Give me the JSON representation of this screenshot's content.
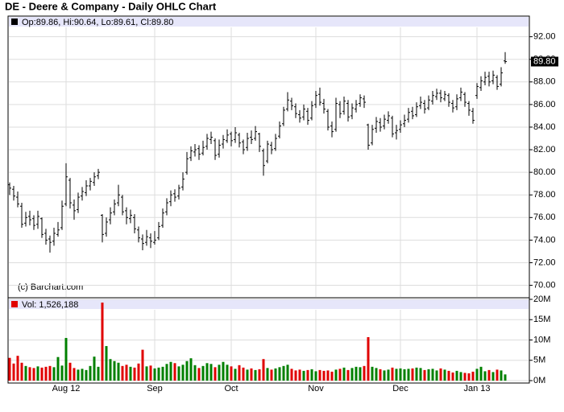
{
  "chart_data": {
    "type": "ohlc",
    "title": "DE - Deere & Company - Daily OHLC Chart",
    "legend_text": "Op:89.86, Hi:90.64, Lo:89.61, Cl:89.80",
    "copyright": "(c) Barchart.com",
    "last_price_label": "89.80",
    "grid": true,
    "bar_color": "#000000",
    "up_color": "#008000",
    "down_color": "#e00000",
    "categories": [
      null,
      null,
      null,
      null,
      null,
      null,
      null,
      null,
      null,
      null,
      null,
      null,
      null,
      null,
      "Aug 12",
      null,
      null,
      null,
      null,
      null,
      null,
      null,
      null,
      null,
      null,
      null,
      null,
      null,
      null,
      null,
      null,
      null,
      null,
      null,
      null,
      null,
      "Sep",
      null,
      null,
      null,
      null,
      null,
      null,
      null,
      null,
      null,
      null,
      null,
      null,
      null,
      null,
      null,
      null,
      null,
      null,
      "Oct",
      null,
      null,
      null,
      null,
      null,
      null,
      null,
      null,
      null,
      null,
      null,
      null,
      null,
      null,
      null,
      null,
      null,
      null,
      null,
      null,
      "Nov",
      null,
      null,
      null,
      null,
      null,
      null,
      null,
      null,
      null,
      null,
      null,
      null,
      null,
      null,
      null,
      null,
      null,
      null,
      null,
      null,
      "Dec",
      null,
      null,
      null,
      null,
      null,
      null,
      null,
      null,
      null,
      null,
      null,
      null,
      null,
      null,
      null,
      null,
      null,
      null,
      "Jan 13",
      null,
      null,
      null,
      null,
      null,
      null,
      null
    ],
    "open": [
      78.9,
      78.5,
      77.8,
      77.0,
      75.5,
      76.1,
      75.9,
      75.4,
      75.9,
      74.6,
      74.1,
      73.9,
      74.5,
      75.1,
      77.2,
      79.3,
      77.1,
      76.7,
      77.9,
      78.2,
      78.8,
      79.1,
      79.7,
      76.2,
      74.6,
      75.8,
      76.5,
      77.3,
      77.8,
      76.6,
      75.9,
      76.0,
      74.9,
      74.1,
      73.8,
      74.2,
      73.8,
      74.2,
      75.3,
      76.5,
      77.4,
      78.1,
      77.9,
      78.7,
      80.0,
      81.3,
      81.8,
      82.1,
      81.7,
      82.3,
      82.9,
      82.8,
      81.6,
      82.5,
      82.8,
      83.4,
      82.9,
      83.3,
      82.7,
      82.2,
      83.1,
      83.0,
      83.4,
      81.9,
      81.0,
      82.4,
      82.1,
      83.2,
      84.3,
      85.6,
      86.3,
      85.8,
      85.1,
      84.9,
      85.4,
      84.8,
      86.0,
      86.9,
      86.1,
      85.4,
      84.1,
      83.8,
      86.0,
      85.4,
      86.1,
      85.0,
      85.6,
      86.1,
      86.5,
      84.2,
      82.6,
      83.9,
      84.4,
      84.1,
      84.6,
      84.8,
      83.5,
      83.8,
      84.3,
      84.7,
      85.4,
      85.1,
      85.9,
      86.1,
      85.7,
      86.3,
      86.7,
      87.0,
      86.5,
      86.8,
      86.1,
      85.8,
      86.6,
      86.9,
      86.1,
      85.4,
      86.8,
      87.5,
      88.0,
      88.5,
      88.1,
      88.4,
      87.8,
      89.86
    ],
    "high": [
      79.1,
      78.8,
      78.3,
      77.3,
      76.5,
      76.6,
      76.2,
      76.6,
      76.0,
      75.0,
      74.4,
      75.1,
      75.6,
      77.5,
      80.8,
      79.5,
      77.6,
      78.2,
      78.7,
      79.3,
      79.5,
      80.0,
      80.3,
      76.3,
      76.0,
      76.9,
      77.6,
      78.9,
      78.0,
      76.9,
      76.7,
      76.3,
      75.2,
      74.5,
      74.9,
      74.6,
      74.8,
      75.6,
      76.8,
      77.7,
      78.4,
      78.5,
      78.9,
      80.0,
      81.8,
      82.3,
      82.5,
      82.4,
      82.8,
      83.4,
      83.6,
      83.0,
      82.9,
      83.3,
      83.8,
      83.6,
      84.0,
      83.5,
      82.9,
      83.5,
      83.7,
      84.1,
      83.5,
      82.1,
      82.8,
      82.7,
      83.4,
      84.5,
      85.8,
      87.1,
      86.6,
      86.1,
      85.5,
      86.0,
      85.7,
      86.3,
      87.2,
      87.5,
      86.5,
      85.6,
      84.5,
      86.6,
      86.3,
      86.7,
      86.4,
      86.1,
      86.4,
      86.9,
      86.8,
      84.3,
      84.2,
      84.9,
      84.8,
      85.1,
      85.4,
      85.0,
      84.2,
      84.6,
      85.1,
      85.7,
      85.8,
      86.2,
      86.7,
      86.4,
      86.8,
      87.2,
      87.4,
      87.3,
      87.2,
      87.0,
      86.4,
      86.9,
      87.5,
      87.1,
      86.3,
      85.7,
      87.9,
      88.5,
      88.9,
      88.9,
      89.0,
      88.6,
      89.3,
      90.64
    ],
    "low": [
      78.0,
      77.5,
      76.9,
      75.1,
      75.2,
      75.3,
      74.9,
      75.0,
      74.2,
      73.6,
      72.9,
      73.5,
      74.3,
      74.9,
      77.0,
      76.8,
      75.8,
      76.4,
      77.5,
      77.9,
      78.4,
      78.8,
      79.4,
      73.8,
      74.3,
      75.4,
      76.2,
      77.0,
      76.2,
      75.4,
      75.5,
      74.6,
      73.8,
      73.1,
      73.5,
      73.3,
      73.6,
      74.0,
      75.1,
      76.2,
      77.0,
      77.4,
      77.6,
      78.4,
      79.8,
      81.0,
      81.4,
      81.1,
      81.5,
      82.0,
      82.5,
      81.1,
      81.3,
      82.1,
      82.6,
      82.3,
      82.6,
      82.2,
      81.6,
      81.9,
      82.5,
      82.8,
      81.8,
      79.7,
      80.8,
      81.6,
      81.9,
      83.0,
      84.1,
      85.4,
      85.5,
      84.8,
      84.4,
      84.6,
      84.2,
      84.6,
      85.7,
      85.9,
      85.2,
      83.7,
      83.1,
      83.6,
      84.8,
      85.1,
      84.5,
      84.7,
      85.3,
      85.8,
      85.7,
      82.0,
      82.4,
      83.5,
      83.6,
      83.8,
      84.3,
      83.1,
      82.9,
      83.5,
      84.0,
      84.4,
      84.7,
      84.9,
      85.6,
      85.2,
      85.5,
      86.0,
      86.4,
      86.2,
      86.3,
      85.8,
      85.3,
      85.5,
      86.3,
      85.8,
      85.0,
      84.3,
      86.5,
      87.2,
      87.7,
      87.6,
      87.8,
      87.3,
      87.6,
      89.61
    ],
    "close": [
      78.6,
      77.9,
      77.2,
      75.4,
      76.0,
      75.8,
      75.3,
      76.1,
      74.5,
      74.0,
      73.8,
      74.6,
      74.9,
      77.0,
      79.6,
      77.3,
      76.6,
      77.8,
      78.3,
      78.8,
      79.2,
      79.6,
      80.0,
      74.5,
      75.6,
      76.4,
      77.2,
      78.0,
      76.5,
      76.0,
      76.2,
      75.0,
      74.2,
      73.7,
      74.3,
      73.9,
      74.0,
      75.2,
      76.4,
      77.3,
      78.0,
      77.8,
      78.6,
      79.4,
      81.2,
      81.9,
      82.0,
      81.6,
      82.2,
      83.0,
      83.1,
      81.5,
      82.4,
      82.9,
      83.3,
      82.8,
      83.5,
      82.6,
      82.0,
      83.0,
      82.9,
      83.6,
      82.3,
      80.6,
      82.5,
      82.0,
      83.0,
      84.1,
      85.5,
      86.4,
      85.9,
      85.2,
      84.8,
      85.6,
      84.6,
      85.9,
      86.8,
      86.2,
      85.6,
      84.0,
      83.6,
      86.1,
      85.2,
      86.3,
      84.9,
      85.7,
      86.0,
      86.6,
      86.2,
      82.4,
      83.8,
      84.5,
      84.0,
      84.7,
      85.0,
      83.4,
      83.7,
      84.2,
      84.6,
      85.3,
      85.0,
      85.8,
      86.2,
      85.6,
      86.4,
      86.8,
      87.0,
      86.6,
      86.9,
      86.2,
      85.7,
      86.5,
      87.1,
      86.2,
      85.5,
      84.6,
      87.6,
      88.1,
      88.4,
      88.0,
      88.6,
      87.6,
      88.8,
      89.8
    ],
    "ylim": [
      68.9,
      92.9
    ],
    "yticks": [
      {
        "value": 70,
        "label": "70.00"
      },
      {
        "value": 72,
        "label": "72.00"
      },
      {
        "value": 74,
        "label": "74.00"
      },
      {
        "value": 76,
        "label": "76.00"
      },
      {
        "value": 78,
        "label": "78.00"
      },
      {
        "value": 80,
        "label": "80.00"
      },
      {
        "value": 82,
        "label": "82.00"
      },
      {
        "value": 84,
        "label": "84.00"
      },
      {
        "value": 86,
        "label": "86.00"
      },
      {
        "value": 88,
        "label": "88.00"
      },
      {
        "value": 90,
        "label": "90.00"
      },
      {
        "value": 92,
        "label": "92.00"
      }
    ],
    "volume": {
      "legend_text": "Vol: 1,526,188",
      "values": [
        5.6,
        4.2,
        6.1,
        4.4,
        3.6,
        3.3,
        3.1,
        3.5,
        3.2,
        3.4,
        3.6,
        3.3,
        5.8,
        3.7,
        10.5,
        4.4,
        3.1,
        2.7,
        2.9,
        2.6,
        3.6,
        5.9,
        3.4,
        19.2,
        8.5,
        5.3,
        4.8,
        4.4,
        3.6,
        3.9,
        3.4,
        3.2,
        4.2,
        7.6,
        3.5,
        3.7,
        3.0,
        3.2,
        3.4,
        4.1,
        4.6,
        4.3,
        3.5,
        3.9,
        4.8,
        5.5,
        3.8,
        3.1,
        3.6,
        4.3,
        4.1,
        3.3,
        3.9,
        4.6,
        3.9,
        3.5,
        2.9,
        3.8,
        3.2,
        2.7,
        3.0,
        2.6,
        2.8,
        5.3,
        3.1,
        2.7,
        3.0,
        3.3,
        3.6,
        3.9,
        2.9,
        2.5,
        2.7,
        2.4,
        2.6,
        2.8,
        2.3,
        2.6,
        2.4,
        2.5,
        2.2,
        2.7,
        2.9,
        3.2,
        2.6,
        3.1,
        3.4,
        3.3,
        3.6,
        10.7,
        3.4,
        3.1,
        2.8,
        2.5,
        2.7,
        3.2,
        2.9,
        3.0,
        2.8,
        2.9,
        3.0,
        3.2,
        3.1,
        2.6,
        2.8,
        2.9,
        2.5,
        3.0,
        2.7,
        2.4,
        2.0,
        2.4,
        2.1,
        1.9,
        1.8,
        2.2,
        2.9,
        3.4,
        2.3,
        2.6,
        2.1,
        2.7,
        2.5,
        1.526188
      ],
      "ylim": [
        0,
        20
      ],
      "yticks": [
        {
          "value": 0,
          "label": "0M"
        },
        {
          "value": 5,
          "label": "5M"
        },
        {
          "value": 10,
          "label": "10M"
        },
        {
          "value": 15,
          "label": "15M"
        },
        {
          "value": 20,
          "label": "20M"
        }
      ]
    }
  }
}
